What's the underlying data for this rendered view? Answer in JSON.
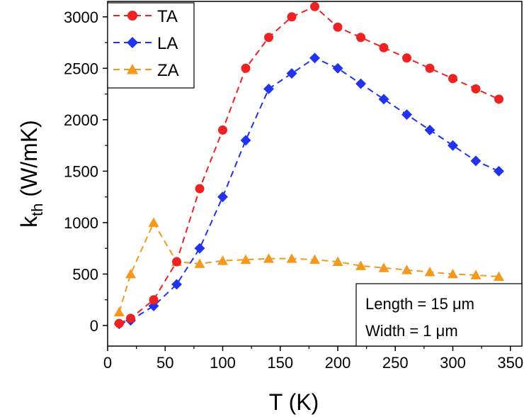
{
  "chart_data": {
    "type": "line",
    "xlabel": "T (K)",
    "ylabel_main": "k",
    "ylabel_sub": "th",
    "ylabel_unit": " (W/mK)",
    "xlim": [
      0,
      360
    ],
    "ylim": [
      -200,
      3150
    ],
    "x_ticks": [
      0,
      50,
      100,
      150,
      200,
      250,
      300,
      350
    ],
    "y_ticks": [
      0,
      500,
      1000,
      1500,
      2000,
      2500,
      3000
    ],
    "grid": false,
    "legend_position": "top-left",
    "series": [
      {
        "name": "TA",
        "color": "#ee2222",
        "marker": "circle",
        "x": [
          10,
          20,
          40,
          60,
          80,
          100,
          120,
          140,
          160,
          180,
          200,
          220,
          240,
          260,
          280,
          300,
          320,
          340
        ],
        "y": [
          20,
          70,
          250,
          620,
          1330,
          1900,
          2500,
          2800,
          3000,
          3100,
          2900,
          2800,
          2700,
          2600,
          2500,
          2400,
          2300,
          2200
        ]
      },
      {
        "name": "LA",
        "color": "#2233ee",
        "marker": "diamond",
        "x": [
          10,
          20,
          40,
          60,
          80,
          100,
          120,
          140,
          160,
          180,
          200,
          220,
          240,
          260,
          280,
          300,
          320,
          340
        ],
        "y": [
          15,
          50,
          190,
          400,
          750,
          1250,
          1800,
          2300,
          2450,
          2600,
          2500,
          2350,
          2200,
          2050,
          1900,
          1750,
          1600,
          1500
        ]
      },
      {
        "name": "ZA",
        "color": "#f5981e",
        "marker": "triangle",
        "x": [
          10,
          20,
          40,
          60,
          80,
          100,
          120,
          140,
          160,
          180,
          200,
          220,
          240,
          260,
          280,
          300,
          320,
          340
        ],
        "y": [
          130,
          500,
          1000,
          620,
          600,
          630,
          640,
          650,
          650,
          640,
          620,
          580,
          560,
          540,
          520,
          500,
          490,
          475
        ]
      }
    ],
    "annotation": {
      "line1": "Length = 15 μm",
      "line2": "Width = 1 μm"
    }
  }
}
